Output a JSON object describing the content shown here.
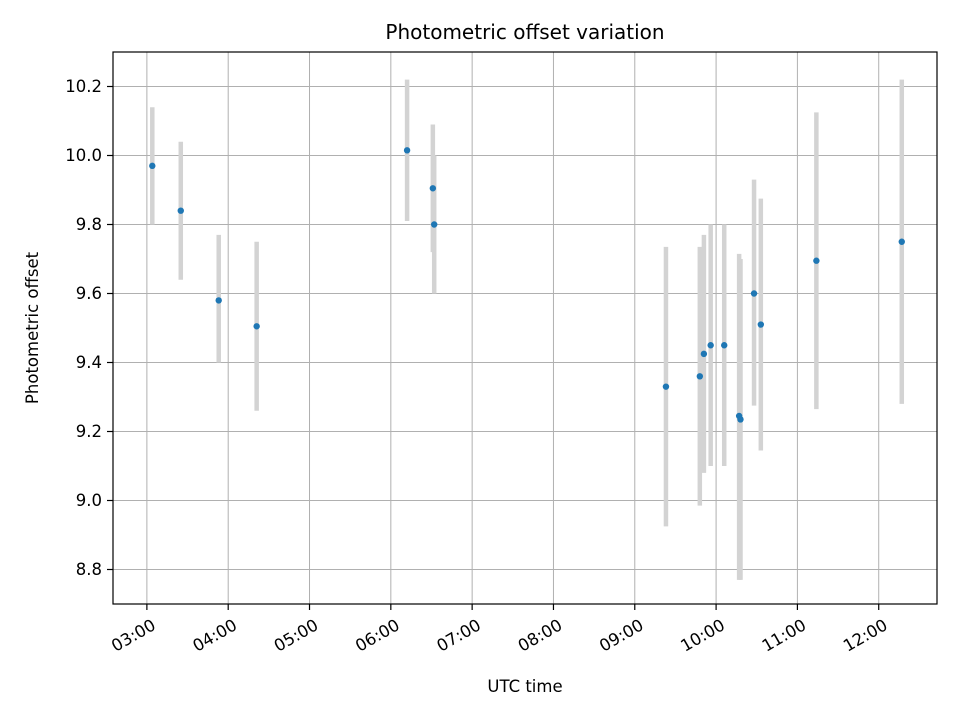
{
  "chart_data": {
    "type": "scatter",
    "title": "Photometric offset variation",
    "xlabel": "UTC time",
    "ylabel": "Photometric offset",
    "x_axis": {
      "kind": "time",
      "range": [
        "02:35",
        "12:43"
      ],
      "tick_labels": [
        "03:00",
        "04:00",
        "05:00",
        "06:00",
        "07:00",
        "08:00",
        "09:00",
        "10:00",
        "11:00",
        "12:00"
      ]
    },
    "y_axis": {
      "range": [
        8.7,
        10.3
      ],
      "ticks": [
        8.8,
        9.0,
        9.2,
        9.4,
        9.6,
        9.8,
        10.0,
        10.2
      ],
      "tick_labels": [
        "8.8",
        "9.0",
        "9.2",
        "9.4",
        "9.6",
        "9.8",
        "10.0",
        "10.2"
      ]
    },
    "grid": true,
    "colors": {
      "marker": "#1f77b4",
      "errorbar": "#d3d3d3",
      "grid": "#b0b0b0"
    },
    "series": [
      {
        "points": [
          {
            "x": "03:04",
            "y": 9.97,
            "ylow": 9.8,
            "yhigh": 10.14
          },
          {
            "x": "03:25",
            "y": 9.84,
            "ylow": 9.64,
            "yhigh": 10.04
          },
          {
            "x": "03:53",
            "y": 9.58,
            "ylow": 9.4,
            "yhigh": 9.77
          },
          {
            "x": "04:21",
            "y": 9.505,
            "ylow": 9.26,
            "yhigh": 9.75
          },
          {
            "x": "06:12",
            "y": 10.015,
            "ylow": 9.81,
            "yhigh": 10.22
          },
          {
            "x": "06:31",
            "y": 9.905,
            "ylow": 9.72,
            "yhigh": 10.09
          },
          {
            "x": "06:32",
            "y": 9.8,
            "ylow": 9.6,
            "yhigh": 10.0
          },
          {
            "x": "09:23",
            "y": 9.33,
            "ylow": 8.925,
            "yhigh": 9.735
          },
          {
            "x": "09:48",
            "y": 9.36,
            "ylow": 8.985,
            "yhigh": 9.735
          },
          {
            "x": "09:51",
            "y": 9.425,
            "ylow": 9.08,
            "yhigh": 9.77
          },
          {
            "x": "09:56",
            "y": 9.45,
            "ylow": 9.1,
            "yhigh": 9.8
          },
          {
            "x": "10:06",
            "y": 9.45,
            "ylow": 9.1,
            "yhigh": 9.8
          },
          {
            "x": "10:17",
            "y": 9.245,
            "ylow": 8.77,
            "yhigh": 9.715
          },
          {
            "x": "10:18",
            "y": 9.235,
            "ylow": 8.77,
            "yhigh": 9.7
          },
          {
            "x": "10:28",
            "y": 9.6,
            "ylow": 9.275,
            "yhigh": 9.93
          },
          {
            "x": "10:33",
            "y": 9.51,
            "ylow": 9.145,
            "yhigh": 9.875
          },
          {
            "x": "11:14",
            "y": 9.695,
            "ylow": 9.265,
            "yhigh": 10.125
          },
          {
            "x": "12:17",
            "y": 9.75,
            "ylow": 9.28,
            "yhigh": 10.22
          }
        ]
      }
    ]
  }
}
